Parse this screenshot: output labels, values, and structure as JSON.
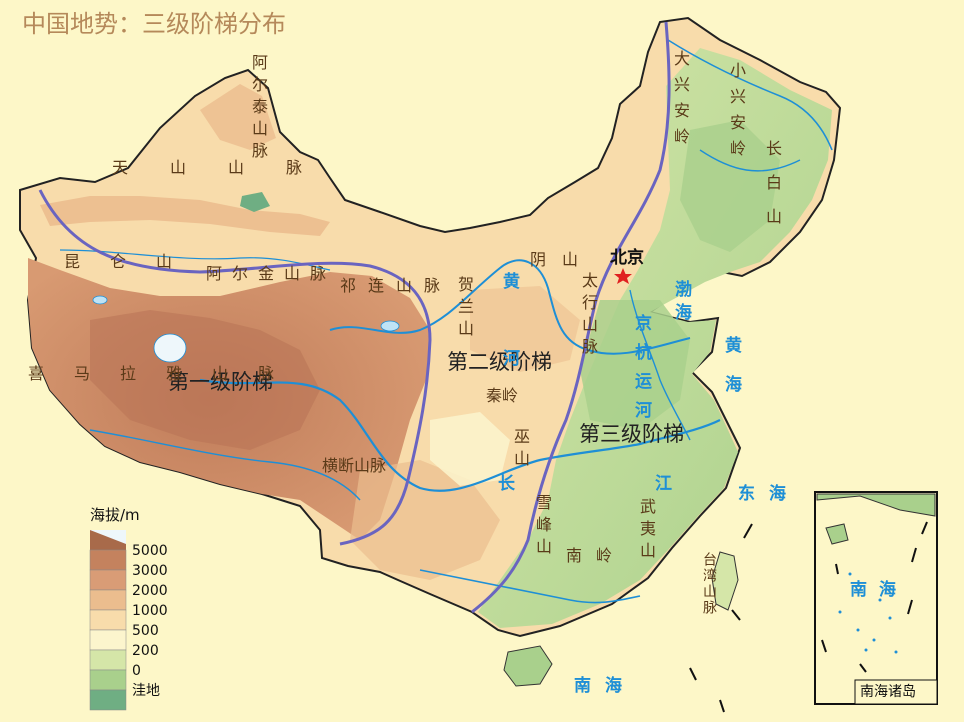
{
  "title": "中国地势：三级阶梯分布",
  "steps": [
    "第一级阶梯",
    "第二级阶梯",
    "第三级阶梯"
  ],
  "city": {
    "name": "北京",
    "icon": "star-icon"
  },
  "mountains": {
    "altai": "阿尔泰山脉",
    "tianshan": "天山山脉",
    "kunlun": "昆仑山",
    "altun": "阿尔金山脉",
    "qilian": "祁连山脉",
    "himalaya": "喜马拉雅山脉",
    "hengduan": "横断山脉",
    "helan": "贺兰山",
    "yinshan": "阴山",
    "taihang": "太行山脉",
    "qinling": "秦岭",
    "wushan": "巫山",
    "xuefeng": "雪峰山",
    "wuyi": "武夷山",
    "nanling": "南岭",
    "dahinggan": "大兴安岭",
    "xiaohinggan": "小兴安岭",
    "changbai": "长白山",
    "taiwan": "台湾山脉"
  },
  "waters": {
    "bohai": "渤海",
    "huanghai": "黄海",
    "donghai": "东海",
    "nanhai": "南海",
    "inset_nanhai": "南海",
    "huanghe": "黄河",
    "changjiang": "长江",
    "canal": "京杭运河"
  },
  "legend": {
    "title": "海拔/m",
    "items": [
      {
        "label": "5000",
        "color": "#c4825e"
      },
      {
        "label": "3000",
        "color": "#d99c76"
      },
      {
        "label": "2000",
        "color": "#ebbd8e"
      },
      {
        "label": "1000",
        "color": "#f8dcab"
      },
      {
        "label": "500",
        "color": "#fcf5cd"
      },
      {
        "label": "200",
        "color": "#d5e6a8"
      },
      {
        "label": "0",
        "color": "#a9d08c"
      },
      {
        "label": "洼地",
        "color": "#6fae83"
      }
    ],
    "peak_color": "#a86a4a"
  },
  "inset": {
    "label": "南海诸岛"
  },
  "colors": {
    "background": "#fdf7c8",
    "boundary_line": "#6a64c0",
    "river": "#1e8fd6",
    "lowland_green": "#a9d08c",
    "plateau_brown": "#c4825e"
  }
}
